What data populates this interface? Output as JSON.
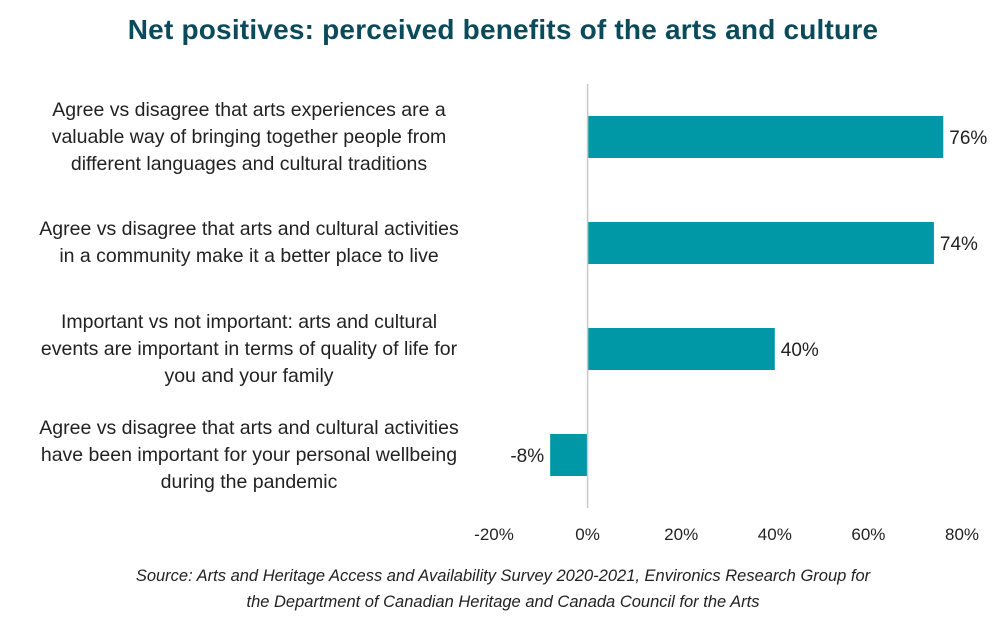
{
  "colors": {
    "title": "#0b4a5a",
    "bar": "#0097a7",
    "axis": "#c8c8c8",
    "text": "#222222"
  },
  "chart_data": {
    "type": "bar",
    "orientation": "horizontal",
    "title": "Net positives: perceived benefits of the arts and culture",
    "categories": [
      [
        "Agree vs disagree that arts experiences are a",
        "valuable way of bringing together people from",
        "different languages and cultural traditions"
      ],
      [
        "Agree vs disagree that arts and cultural activities",
        "in a community make it a better place to live"
      ],
      [
        "Important vs not important: arts and cultural",
        "events are important in terms of quality of life for",
        "you and your family"
      ],
      [
        "Agree vs disagree that arts and cultural activities",
        "have been important for your personal wellbeing",
        "during the pandemic"
      ]
    ],
    "values": [
      76,
      74,
      40,
      -8
    ],
    "value_labels": [
      "76%",
      "74%",
      "40%",
      "-8%"
    ],
    "xlim": [
      -20,
      80
    ],
    "xticks": [
      -20,
      0,
      20,
      40,
      60,
      80
    ],
    "xtick_labels": [
      "-20%",
      "0%",
      "20%",
      "40%",
      "60%",
      "80%"
    ],
    "grid": false,
    "legend": "none"
  },
  "source": {
    "line1": "Source: Arts and Heritage Access and Availability Survey 2020-2021, Environics Research Group for",
    "line2": "the Department of Canadian Heritage and Canada Council for the Arts"
  }
}
